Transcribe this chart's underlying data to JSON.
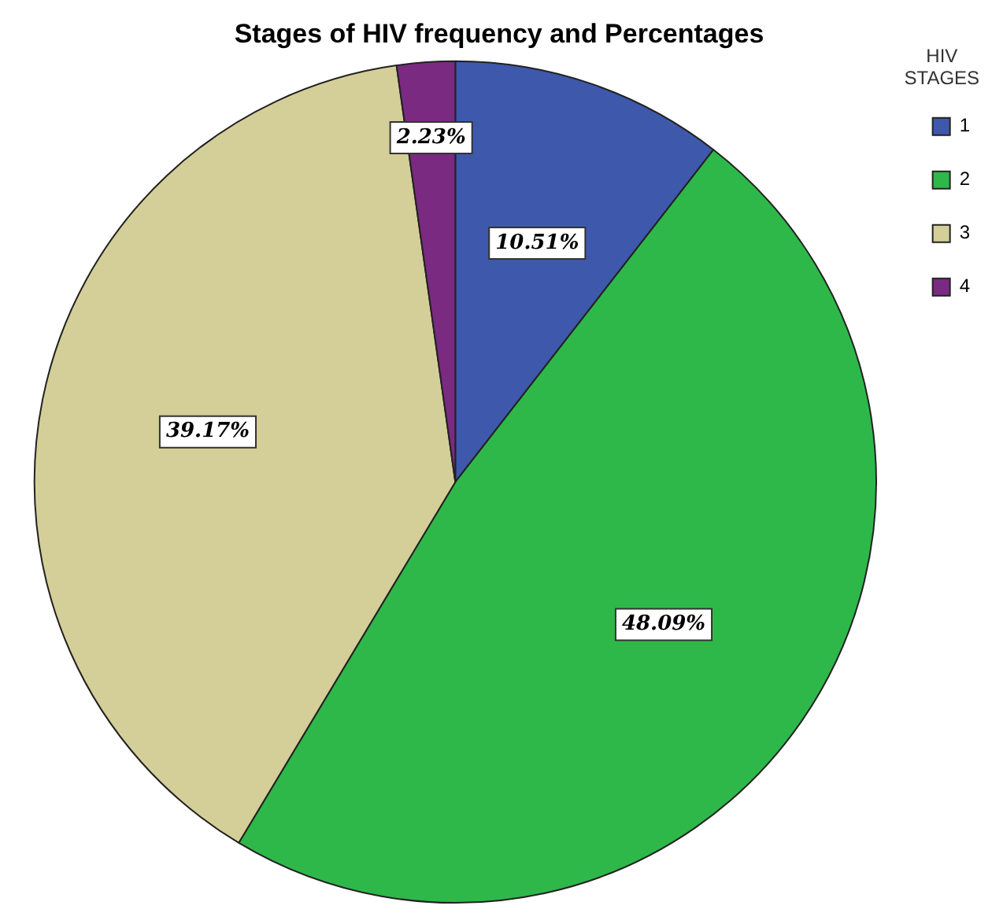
{
  "chart_data": {
    "type": "pie",
    "title": "Stages of HIV frequency and Percentages",
    "legend_title": "HIV STAGES",
    "legend": "top right",
    "categories": [
      "1",
      "2",
      "3",
      "4"
    ],
    "values": [
      10.51,
      48.09,
      39.17,
      2.23
    ],
    "value_labels": [
      "10.51%",
      "48.09%",
      "39.17%",
      "2.23%"
    ],
    "colors": [
      "#3e58ac",
      "#2fb84a",
      "#d4cf98",
      "#7b2a82"
    ]
  }
}
